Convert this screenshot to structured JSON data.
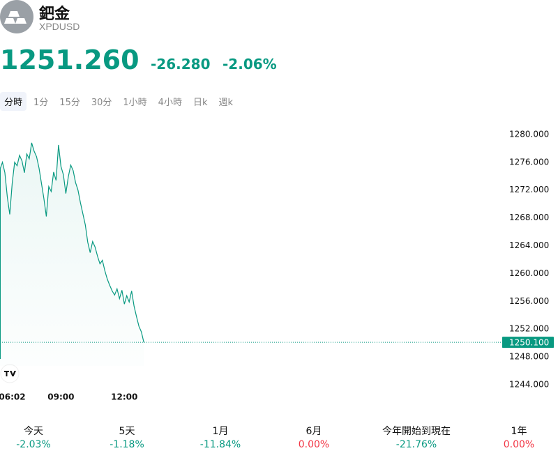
{
  "header": {
    "name": "鈀金",
    "symbol": "XPDUSD"
  },
  "quote": {
    "price": "1251.260",
    "change": "-26.280",
    "change_percent": "-2.06%"
  },
  "tabs": {
    "items": [
      "分時",
      "1分",
      "15分",
      "30分",
      "1小時",
      "4小時",
      "日k",
      "週k"
    ],
    "active": 0
  },
  "chart_data": {
    "type": "line",
    "series": [
      {
        "color": "#089981",
        "values": [
          1275.0,
          1276.0,
          1274.5,
          1271.0,
          1268.5,
          1273.0,
          1276.0,
          1275.5,
          1277.0,
          1276.2,
          1274.5,
          1277.2,
          1276.5,
          1278.8,
          1277.6,
          1276.8,
          1275.2,
          1273.0,
          1270.8,
          1268.2,
          1272.5,
          1271.8,
          1274.6,
          1273.4,
          1278.5,
          1275.4,
          1274.2,
          1271.5,
          1273.9,
          1275.6,
          1274.8,
          1273.1,
          1272.0,
          1270.2,
          1268.6,
          1267.0,
          1264.5,
          1263.0,
          1264.6,
          1263.8,
          1262.5,
          1261.4,
          1261.9,
          1260.4,
          1259.2,
          1258.3,
          1257.5,
          1256.9,
          1257.8,
          1256.4,
          1257.6,
          1255.6,
          1256.8,
          1255.9,
          1257.5,
          1255.3,
          1253.8,
          1252.4,
          1251.6,
          1250.1
        ]
      }
    ],
    "xlim": [
      0,
      206
    ],
    "xticks": [
      {
        "value": 5,
        "label": "06:02"
      },
      {
        "value": 25,
        "label": "09:00"
      },
      {
        "value": 51,
        "label": "12:00"
      }
    ],
    "ylim": [
      1243,
      1283
    ],
    "yticks": [
      {
        "value": 1244,
        "label": "1244.000"
      },
      {
        "value": 1248,
        "label": "1248.000"
      },
      {
        "value": 1252,
        "label": "1252.000"
      },
      {
        "value": 1256,
        "label": "1256.000"
      },
      {
        "value": 1260,
        "label": "1260.000"
      },
      {
        "value": 1264,
        "label": "1264.000"
      },
      {
        "value": 1268,
        "label": "1268.000"
      },
      {
        "value": 1272,
        "label": "1272.000"
      },
      {
        "value": 1276,
        "label": "1276.000"
      },
      {
        "value": 1280,
        "label": "1280.000"
      }
    ],
    "last_price": {
      "value": 1250.1,
      "label": "1250.100"
    }
  },
  "performance": [
    {
      "label": "今天",
      "value": -2.03,
      "value_label": "-2.03%",
      "color": "#089981"
    },
    {
      "label": "5天",
      "value": -1.18,
      "value_label": "-1.18%",
      "color": "#089981"
    },
    {
      "label": "1月",
      "value": -11.84,
      "value_label": "-11.84%",
      "color": "#089981"
    },
    {
      "label": "6月",
      "value": 0.0,
      "value_label": "0.00%",
      "color": "#f23645"
    },
    {
      "label": "今年開始到現在",
      "value": -21.76,
      "value_label": "-21.76%",
      "color": "#089981"
    },
    {
      "label": "1年",
      "value": 0.0,
      "value_label": "0.00%",
      "color": "#f23645"
    }
  ]
}
